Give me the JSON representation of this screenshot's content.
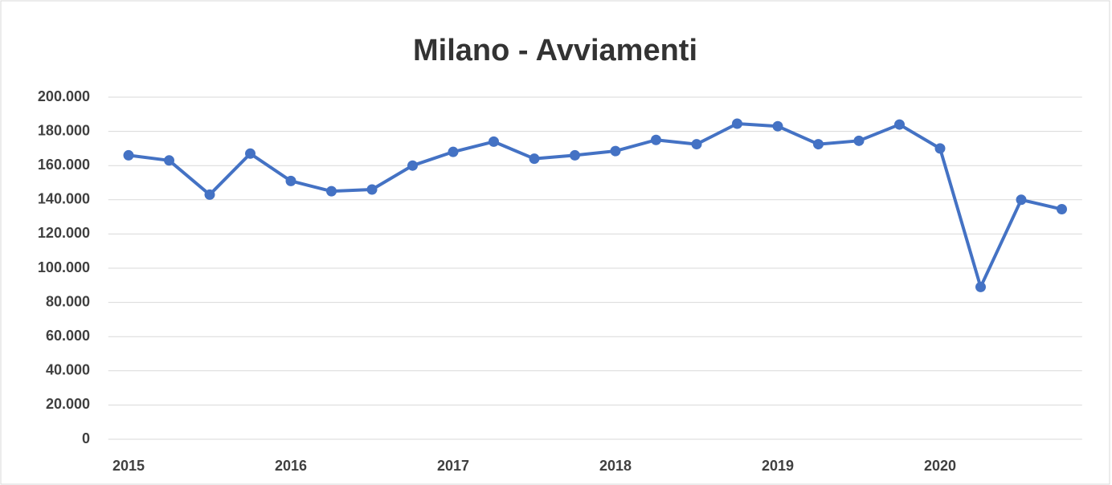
{
  "chart_data": {
    "type": "line",
    "title": "Milano - Avviamenti",
    "categories": [
      "2015",
      null,
      null,
      null,
      "2016",
      null,
      null,
      null,
      "2017",
      null,
      null,
      null,
      "2018",
      null,
      null,
      null,
      "2019",
      null,
      null,
      null,
      "2020",
      null,
      null,
      null
    ],
    "series": [
      {
        "name": "Avviamenti",
        "color": "#4472c4",
        "values": [
          166000,
          163000,
          143000,
          167000,
          151000,
          145000,
          146000,
          160000,
          168000,
          174000,
          164000,
          166000,
          168500,
          175000,
          172500,
          184500,
          183000,
          172500,
          174500,
          184000,
          170000,
          89000,
          140000,
          134500
        ]
      }
    ],
    "ylim": [
      0,
      200000
    ],
    "yticks": [
      0,
      {
        "value": 20000,
        "label": "20.000"
      },
      {
        "value": 40000,
        "label": "40.000"
      },
      {
        "value": 60000,
        "label": "60.000"
      },
      {
        "value": 80000,
        "label": "80.000"
      },
      {
        "value": 100000,
        "label": "100.000"
      },
      {
        "value": 120000,
        "label": "120.000"
      },
      {
        "value": 140000,
        "label": "140.000"
      },
      {
        "value": 160000,
        "label": "160.000"
      },
      {
        "value": 180000,
        "label": "180.000"
      },
      {
        "value": 200000,
        "label": "200.000"
      }
    ],
    "grid": true
  }
}
